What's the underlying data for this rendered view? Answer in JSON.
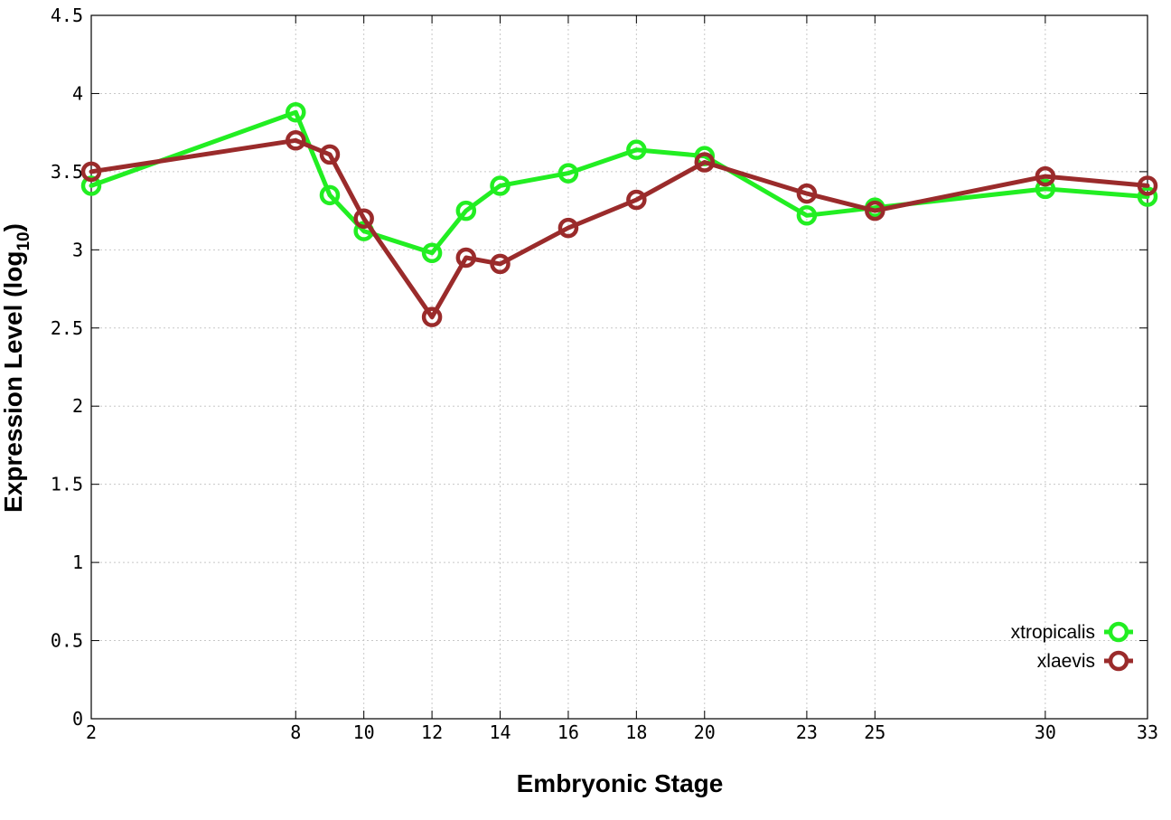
{
  "chart_data": {
    "type": "line",
    "title": "",
    "xlabel": "Embryonic Stage",
    "ylabel": "Expression Level (log",
    "ylabel_subscript": "10",
    "ylabel_suffix": ")",
    "x": [
      2,
      8,
      9,
      10,
      12,
      13,
      14,
      16,
      18,
      20,
      23,
      25,
      30,
      33
    ],
    "xticks": [
      "2",
      "8",
      "10",
      "12",
      "14",
      "16",
      "18",
      "20",
      "23",
      "25",
      "30",
      "33"
    ],
    "xtick_values": [
      2,
      8,
      10,
      12,
      14,
      16,
      18,
      20,
      23,
      25,
      30,
      33
    ],
    "xlim": [
      2,
      33
    ],
    "ylim": [
      0,
      4.5
    ],
    "yticks": [
      "0",
      "0.5",
      "1",
      "1.5",
      "2",
      "2.5",
      "3",
      "3.5",
      "4",
      "4.5"
    ],
    "ytick_values": [
      0,
      0.5,
      1,
      1.5,
      2,
      2.5,
      3,
      3.5,
      4,
      4.5
    ],
    "grid": true,
    "legend_position": "bottom-right",
    "series": [
      {
        "name": "xtropicalis",
        "color": "#22ee22",
        "values": [
          3.41,
          3.88,
          3.35,
          3.12,
          2.98,
          3.25,
          3.41,
          3.49,
          3.64,
          3.6,
          3.22,
          3.27,
          3.39,
          3.34
        ]
      },
      {
        "name": "xlaevis",
        "color": "#9a2b2b",
        "values": [
          3.5,
          3.7,
          3.61,
          3.2,
          2.57,
          2.95,
          2.91,
          3.14,
          3.32,
          3.56,
          3.36,
          3.25,
          3.47,
          3.41
        ]
      }
    ]
  }
}
